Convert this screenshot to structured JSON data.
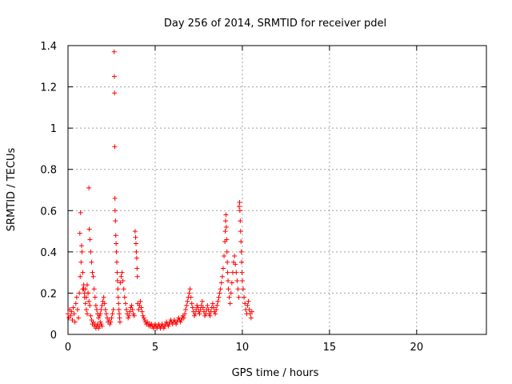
{
  "chart_data": {
    "type": "scatter",
    "title": "Day 256 of 2014, SRMTID for receiver pdel",
    "xlabel": "GPS time / hours",
    "ylabel": "SRMTID / TECUs",
    "xlim": [
      0,
      24
    ],
    "ylim": [
      0,
      1.4
    ],
    "grid": true,
    "legend": "none",
    "marker": "+",
    "colors": {
      "series": "#ff0000",
      "grid": "#a0a0a0",
      "axis": "#000000"
    },
    "x_ticks": [
      {
        "value": 0,
        "label": "0"
      },
      {
        "value": 5,
        "label": "5"
      },
      {
        "value": 10,
        "label": "10"
      },
      {
        "value": 15,
        "label": "15"
      },
      {
        "value": 20,
        "label": "20"
      }
    ],
    "y_ticks": [
      {
        "value": 0,
        "label": "0"
      },
      {
        "value": 0.2,
        "label": "0.2"
      },
      {
        "value": 0.4,
        "label": "0.4"
      },
      {
        "value": 0.6,
        "label": "0.6"
      },
      {
        "value": 0.8,
        "label": "0.8"
      },
      {
        "value": 1.0,
        "label": "1"
      },
      {
        "value": 1.2,
        "label": "1.2"
      },
      {
        "value": 1.4,
        "label": "1.4"
      }
    ],
    "series": [
      {
        "name": "SRMTID",
        "points": [
          [
            0.0,
            0.1
          ],
          [
            0.05,
            0.08
          ],
          [
            0.1,
            0.12
          ],
          [
            0.15,
            0.09
          ],
          [
            0.2,
            0.11
          ],
          [
            0.25,
            0.07
          ],
          [
            0.3,
            0.13
          ],
          [
            0.35,
            0.1
          ],
          [
            0.4,
            0.06
          ],
          [
            0.45,
            0.15
          ],
          [
            0.5,
            0.18
          ],
          [
            0.55,
            0.12
          ],
          [
            0.6,
            0.08
          ],
          [
            0.65,
            0.2
          ],
          [
            0.7,
            0.28
          ],
          [
            0.75,
            0.35
          ],
          [
            0.8,
            0.4
          ],
          [
            0.85,
            0.3
          ],
          [
            0.9,
            0.22
          ],
          [
            0.95,
            0.18
          ],
          [
            1.0,
            0.15
          ],
          [
            1.05,
            0.12
          ],
          [
            1.1,
            0.1
          ],
          [
            1.15,
            0.2
          ],
          [
            1.2,
            0.16
          ],
          [
            1.25,
            0.14
          ],
          [
            1.3,
            0.09
          ],
          [
            1.35,
            0.07
          ],
          [
            1.4,
            0.05
          ],
          [
            1.45,
            0.06
          ],
          [
            1.5,
            0.04
          ],
          [
            1.55,
            0.05
          ],
          [
            1.6,
            0.03
          ],
          [
            1.65,
            0.04
          ],
          [
            1.7,
            0.05
          ],
          [
            1.75,
            0.03
          ],
          [
            1.8,
            0.04
          ],
          [
            1.85,
            0.06
          ],
          [
            1.9,
            0.05
          ],
          [
            1.95,
            0.04
          ],
          [
            0.72,
            0.59
          ],
          [
            0.68,
            0.49
          ],
          [
            0.78,
            0.43
          ],
          [
            0.85,
            0.22
          ],
          [
            0.9,
            0.24
          ],
          [
            0.95,
            0.2
          ],
          [
            1.0,
            0.22
          ],
          [
            1.05,
            0.18
          ],
          [
            1.1,
            0.24
          ],
          [
            1.15,
            0.2
          ],
          [
            1.2,
            0.71
          ],
          [
            1.22,
            0.51
          ],
          [
            1.26,
            0.46
          ],
          [
            1.3,
            0.4
          ],
          [
            1.35,
            0.35
          ],
          [
            1.4,
            0.3
          ],
          [
            1.45,
            0.28
          ],
          [
            1.5,
            0.22
          ],
          [
            1.55,
            0.18
          ],
          [
            1.6,
            0.14
          ],
          [
            1.65,
            0.12
          ],
          [
            1.7,
            0.1
          ],
          [
            1.75,
            0.08
          ],
          [
            1.8,
            0.09
          ],
          [
            1.85,
            0.1
          ],
          [
            1.9,
            0.12
          ],
          [
            1.95,
            0.14
          ],
          [
            2.0,
            0.16
          ],
          [
            2.05,
            0.18
          ],
          [
            2.1,
            0.15
          ],
          [
            2.15,
            0.12
          ],
          [
            2.2,
            0.1
          ],
          [
            2.25,
            0.08
          ],
          [
            2.3,
            0.06
          ],
          [
            2.35,
            0.07
          ],
          [
            2.4,
            0.05
          ],
          [
            2.45,
            0.06
          ],
          [
            2.5,
            0.08
          ],
          [
            2.55,
            0.1
          ],
          [
            2.6,
            0.12
          ],
          [
            2.65,
            1.37
          ],
          [
            2.66,
            1.25
          ],
          [
            2.67,
            1.17
          ],
          [
            2.68,
            0.91
          ],
          [
            2.69,
            0.66
          ],
          [
            2.7,
            0.6
          ],
          [
            2.72,
            0.55
          ],
          [
            2.74,
            0.48
          ],
          [
            2.76,
            0.44
          ],
          [
            2.78,
            0.4
          ],
          [
            2.8,
            0.35
          ],
          [
            2.82,
            0.3
          ],
          [
            2.84,
            0.26
          ],
          [
            2.86,
            0.22
          ],
          [
            2.88,
            0.18
          ],
          [
            2.9,
            0.15
          ],
          [
            2.92,
            0.12
          ],
          [
            2.94,
            0.1
          ],
          [
            2.96,
            0.08
          ],
          [
            2.98,
            0.06
          ],
          [
            3.0,
            0.25
          ],
          [
            3.05,
            0.28
          ],
          [
            3.1,
            0.3
          ],
          [
            3.15,
            0.26
          ],
          [
            3.2,
            0.22
          ],
          [
            3.25,
            0.18
          ],
          [
            3.3,
            0.15
          ],
          [
            3.35,
            0.12
          ],
          [
            3.4,
            0.1
          ],
          [
            3.45,
            0.08
          ],
          [
            3.5,
            0.09
          ],
          [
            3.55,
            0.11
          ],
          [
            3.6,
            0.13
          ],
          [
            3.65,
            0.14
          ],
          [
            3.7,
            0.12
          ],
          [
            3.75,
            0.1
          ],
          [
            3.8,
            0.09
          ],
          [
            3.85,
            0.5
          ],
          [
            3.88,
            0.47
          ],
          [
            3.9,
            0.44
          ],
          [
            3.92,
            0.4
          ],
          [
            3.94,
            0.37
          ],
          [
            3.96,
            0.32
          ],
          [
            3.98,
            0.28
          ],
          [
            4.0,
            0.15
          ],
          [
            4.05,
            0.12
          ],
          [
            4.1,
            0.14
          ],
          [
            4.15,
            0.16
          ],
          [
            4.2,
            0.13
          ],
          [
            4.25,
            0.11
          ],
          [
            4.3,
            0.09
          ],
          [
            4.35,
            0.08
          ],
          [
            4.4,
            0.07
          ],
          [
            4.45,
            0.06
          ],
          [
            4.5,
            0.05
          ],
          [
            4.55,
            0.06
          ],
          [
            4.6,
            0.05
          ],
          [
            4.65,
            0.04
          ],
          [
            4.7,
            0.05
          ],
          [
            4.75,
            0.04
          ],
          [
            4.8,
            0.05
          ],
          [
            4.85,
            0.04
          ],
          [
            4.9,
            0.03
          ],
          [
            4.95,
            0.04
          ],
          [
            5.0,
            0.05
          ],
          [
            5.05,
            0.04
          ],
          [
            5.1,
            0.03
          ],
          [
            5.15,
            0.04
          ],
          [
            5.2,
            0.05
          ],
          [
            5.25,
            0.04
          ],
          [
            5.3,
            0.03
          ],
          [
            5.35,
            0.04
          ],
          [
            5.4,
            0.05
          ],
          [
            5.45,
            0.04
          ],
          [
            5.5,
            0.03
          ],
          [
            5.55,
            0.04
          ],
          [
            5.6,
            0.05
          ],
          [
            5.65,
            0.06
          ],
          [
            5.7,
            0.05
          ],
          [
            5.75,
            0.04
          ],
          [
            5.8,
            0.05
          ],
          [
            5.85,
            0.06
          ],
          [
            5.9,
            0.07
          ],
          [
            5.95,
            0.06
          ],
          [
            6.0,
            0.05
          ],
          [
            6.05,
            0.06
          ],
          [
            6.1,
            0.07
          ],
          [
            6.15,
            0.06
          ],
          [
            6.2,
            0.05
          ],
          [
            6.25,
            0.06
          ],
          [
            6.3,
            0.07
          ],
          [
            6.35,
            0.08
          ],
          [
            6.4,
            0.07
          ],
          [
            6.45,
            0.06
          ],
          [
            6.5,
            0.07
          ],
          [
            6.55,
            0.08
          ],
          [
            6.6,
            0.09
          ],
          [
            6.65,
            0.08
          ],
          [
            6.7,
            0.1
          ],
          [
            6.75,
            0.12
          ],
          [
            6.8,
            0.14
          ],
          [
            6.85,
            0.16
          ],
          [
            6.9,
            0.18
          ],
          [
            6.95,
            0.2
          ],
          [
            7.0,
            0.22
          ],
          [
            7.05,
            0.18
          ],
          [
            7.1,
            0.15
          ],
          [
            7.15,
            0.13
          ],
          [
            7.2,
            0.11
          ],
          [
            7.25,
            0.09
          ],
          [
            7.3,
            0.1
          ],
          [
            7.35,
            0.12
          ],
          [
            7.4,
            0.14
          ],
          [
            7.45,
            0.13
          ],
          [
            7.5,
            0.11
          ],
          [
            7.55,
            0.1
          ],
          [
            7.6,
            0.12
          ],
          [
            7.65,
            0.14
          ],
          [
            7.7,
            0.16
          ],
          [
            7.75,
            0.13
          ],
          [
            7.8,
            0.11
          ],
          [
            7.85,
            0.09
          ],
          [
            7.9,
            0.1
          ],
          [
            7.95,
            0.12
          ],
          [
            8.0,
            0.14
          ],
          [
            8.05,
            0.12
          ],
          [
            8.1,
            0.1
          ],
          [
            8.15,
            0.09
          ],
          [
            8.2,
            0.11
          ],
          [
            8.25,
            0.13
          ],
          [
            8.3,
            0.15
          ],
          [
            8.35,
            0.13
          ],
          [
            8.4,
            0.11
          ],
          [
            8.45,
            0.1
          ],
          [
            8.5,
            0.12
          ],
          [
            8.55,
            0.14
          ],
          [
            8.6,
            0.16
          ],
          [
            8.65,
            0.18
          ],
          [
            8.7,
            0.2
          ],
          [
            8.75,
            0.22
          ],
          [
            8.8,
            0.25
          ],
          [
            8.85,
            0.28
          ],
          [
            8.9,
            0.32
          ],
          [
            8.95,
            0.38
          ],
          [
            9.0,
            0.45
          ],
          [
            9.02,
            0.5
          ],
          [
            9.04,
            0.55
          ],
          [
            9.06,
            0.58
          ],
          [
            9.08,
            0.52
          ],
          [
            9.1,
            0.46
          ],
          [
            9.12,
            0.4
          ],
          [
            9.14,
            0.35
          ],
          [
            9.16,
            0.3
          ],
          [
            9.18,
            0.26
          ],
          [
            9.2,
            0.22
          ],
          [
            9.25,
            0.18
          ],
          [
            9.3,
            0.15
          ],
          [
            9.35,
            0.2
          ],
          [
            9.4,
            0.25
          ],
          [
            9.45,
            0.3
          ],
          [
            9.5,
            0.35
          ],
          [
            9.55,
            0.38
          ],
          [
            9.6,
            0.34
          ],
          [
            9.65,
            0.3
          ],
          [
            9.7,
            0.26
          ],
          [
            9.75,
            0.22
          ],
          [
            9.8,
            0.18
          ],
          [
            9.82,
            0.62
          ],
          [
            9.84,
            0.64
          ],
          [
            9.86,
            0.6
          ],
          [
            9.88,
            0.55
          ],
          [
            9.9,
            0.5
          ],
          [
            9.92,
            0.45
          ],
          [
            9.94,
            0.4
          ],
          [
            9.96,
            0.35
          ],
          [
            9.98,
            0.3
          ],
          [
            10.0,
            0.26
          ],
          [
            10.05,
            0.22
          ],
          [
            10.1,
            0.18
          ],
          [
            10.15,
            0.15
          ],
          [
            10.2,
            0.12
          ],
          [
            10.25,
            0.1
          ],
          [
            10.3,
            0.14
          ],
          [
            10.35,
            0.16
          ],
          [
            10.4,
            0.12
          ],
          [
            10.45,
            0.1
          ],
          [
            10.5,
            0.08
          ],
          [
            10.55,
            0.11
          ]
        ]
      }
    ]
  }
}
